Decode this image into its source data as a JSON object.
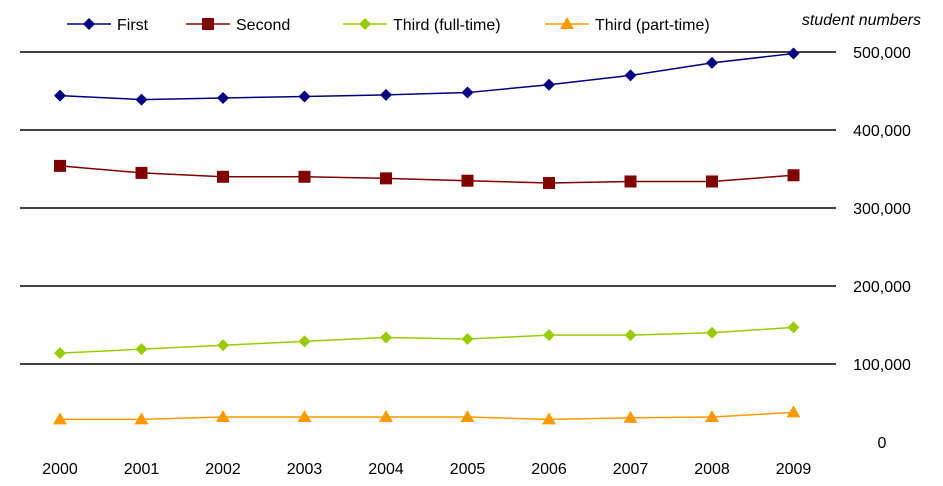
{
  "chart_data": {
    "type": "line",
    "title": "",
    "ylabel": "student numbers",
    "xlabel": "",
    "categories": [
      "2000",
      "2001",
      "2002",
      "2003",
      "2004",
      "2005",
      "2006",
      "2007",
      "2008",
      "2009"
    ],
    "ylim": [
      0,
      500000
    ],
    "yticks": [
      0,
      100000,
      200000,
      300000,
      400000,
      500000
    ],
    "ytick_labels": [
      "0",
      "100,000",
      "200,000",
      "300,000",
      "400,000",
      "500,000"
    ],
    "grid": "horizontal",
    "legend_position": "top",
    "series": [
      {
        "name": "First",
        "color": "#000080",
        "marker": "diamond",
        "values": [
          444000,
          439000,
          441000,
          443000,
          445000,
          448000,
          458000,
          470000,
          486000,
          498000
        ]
      },
      {
        "name": "Second",
        "color": "#800000",
        "marker": "square",
        "values": [
          354000,
          345000,
          340000,
          340000,
          338000,
          335000,
          332000,
          334000,
          334000,
          342000
        ]
      },
      {
        "name": "Third (full-time)",
        "color": "#99CC00",
        "marker": "diamond",
        "values": [
          114000,
          119000,
          124000,
          129000,
          134000,
          132000,
          137000,
          137000,
          140000,
          147000
        ]
      },
      {
        "name": "Third (part-time)",
        "color": "#FF9900",
        "marker": "triangle",
        "values": [
          29000,
          29000,
          32000,
          32000,
          32000,
          32000,
          29000,
          31000,
          32000,
          38000
        ]
      }
    ]
  }
}
